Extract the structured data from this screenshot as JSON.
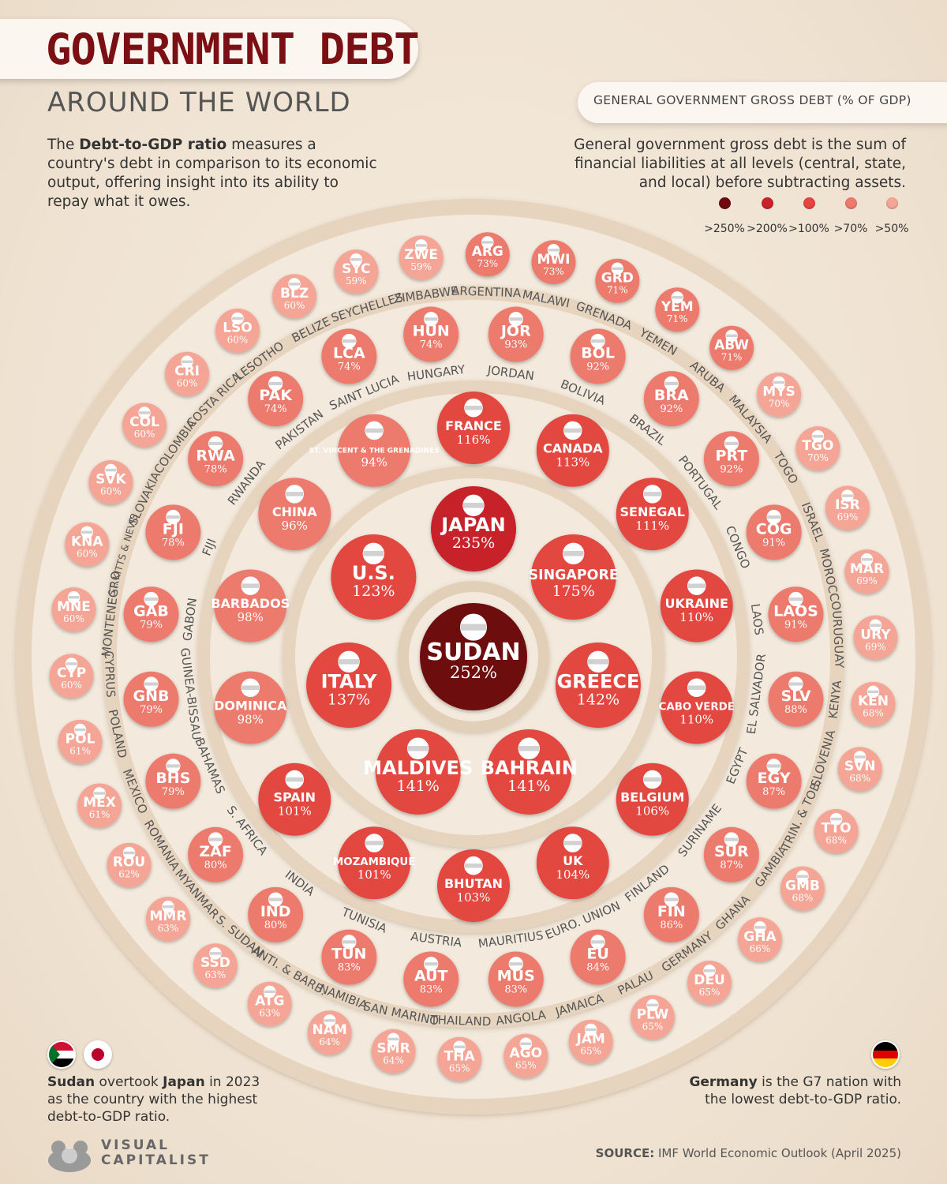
{
  "header": {
    "title": "GOVERNMENT DEBT",
    "subtitle": "AROUND THE WORLD",
    "intro_pre": "The ",
    "intro_bold": "Debt-to-GDP ratio",
    "intro_post": " measures a country's debt in comparison to its economic output, offering insight into its ability to repay what it owes."
  },
  "legend": {
    "title": "GENERAL GOVERNMENT GROSS DEBT (% OF GDP)",
    "description": "General government gross debt is the sum of financial liabilities at all levels (central, state, and local) before subtracting assets.",
    "items": [
      {
        "label": ">250%",
        "color": "#6e0a0e"
      },
      {
        "label": ">200%",
        "color": "#c7232a"
      },
      {
        "label": ">100%",
        "color": "#e2463f"
      },
      {
        "label": ">70%",
        "color": "#ec7a6d"
      },
      {
        "label": ">50%",
        "color": "#f4a595"
      }
    ]
  },
  "notes": {
    "left_bold1": "Sudan",
    "left_mid": " overtook ",
    "left_bold2": "Japan",
    "left_post": " in 2023 as the country with the highest debt-to-GDP ratio.",
    "right_bold": "Germany",
    "right_post": " is the G7 nation with the lowest debt-to-GDP ratio."
  },
  "source": {
    "label": "SOURCE:",
    "text": " IMF World Economic Outlook (April 2025)"
  },
  "logo": {
    "line1": "VISUAL",
    "line2": "CAPITALIST"
  },
  "chart_data": {
    "type": "bubble",
    "title": "GOVERNMENT DEBT",
    "subtitle": "AROUND THE WORLD",
    "metric": "GENERAL GOVERNMENT GROSS DEBT (% OF GDP)",
    "countries": [
      {
        "label": "SUDAN",
        "value": 252,
        "ring": 0
      },
      {
        "label": "JAPAN",
        "value": 235,
        "ring": 1
      },
      {
        "label": "SINGAPORE",
        "value": 175,
        "ring": 1
      },
      {
        "label": "GREECE",
        "value": 142,
        "ring": 1
      },
      {
        "label": "BAHRAIN",
        "value": 141,
        "ring": 1
      },
      {
        "label": "MALDIVES",
        "value": 141,
        "ring": 1
      },
      {
        "label": "ITALY",
        "value": 137,
        "ring": 1
      },
      {
        "label": "U.S.",
        "value": 123,
        "ring": 1
      },
      {
        "label": "FRANCE",
        "value": 116,
        "ring": 2
      },
      {
        "label": "CANADA",
        "value": 113,
        "ring": 2
      },
      {
        "label": "SENEGAL",
        "value": 111,
        "ring": 2
      },
      {
        "label": "UKRAINE",
        "value": 110,
        "ring": 2
      },
      {
        "label": "CABO VERDE",
        "value": 110,
        "ring": 2
      },
      {
        "label": "BELGIUM",
        "value": 106,
        "ring": 2
      },
      {
        "label": "UK",
        "value": 104,
        "ring": 2
      },
      {
        "label": "BHUTAN",
        "value": 103,
        "ring": 2
      },
      {
        "label": "MOZAMBIQUE",
        "value": 101,
        "ring": 2
      },
      {
        "label": "SPAIN",
        "value": 101,
        "ring": 2
      },
      {
        "label": "DOMINICA",
        "value": 98,
        "ring": 2
      },
      {
        "label": "BARBADOS",
        "value": 98,
        "ring": 2
      },
      {
        "label": "CHINA",
        "value": 96,
        "ring": 2
      },
      {
        "label": "ST. VINCENT & THE GRENADINES",
        "value": 94,
        "ring": 2
      },
      {
        "label": "JOR",
        "name": "JORDAN",
        "value": 93,
        "ring": 3
      },
      {
        "label": "BOL",
        "name": "BOLIVIA",
        "value": 92,
        "ring": 3
      },
      {
        "label": "BRA",
        "name": "BRAZIL",
        "value": 92,
        "ring": 3
      },
      {
        "label": "PRT",
        "name": "PORTUGAL",
        "value": 92,
        "ring": 3
      },
      {
        "label": "COG",
        "name": "CONGO",
        "value": 91,
        "ring": 3
      },
      {
        "label": "LAOS",
        "name": "LAOS",
        "value": 91,
        "ring": 3
      },
      {
        "label": "SLV",
        "name": "EL SALVADOR",
        "value": 88,
        "ring": 3
      },
      {
        "label": "EGY",
        "name": "EGYPT",
        "value": 87,
        "ring": 3
      },
      {
        "label": "SUR",
        "name": "SURINAME",
        "value": 87,
        "ring": 3
      },
      {
        "label": "FIN",
        "name": "FINLAND",
        "value": 86,
        "ring": 3
      },
      {
        "label": "EU",
        "name": "EURO. UNION",
        "value": 84,
        "ring": 3
      },
      {
        "label": "MUS",
        "name": "MAURITIUS",
        "value": 83,
        "ring": 3
      },
      {
        "label": "AUT",
        "name": "AUSTRIA",
        "value": 83,
        "ring": 3
      },
      {
        "label": "TUN",
        "name": "TUNISIA",
        "value": 83,
        "ring": 3
      },
      {
        "label": "IND",
        "name": "INDIA",
        "value": 80,
        "ring": 3
      },
      {
        "label": "ZAF",
        "name": "S. AFRICA",
        "value": 80,
        "ring": 3
      },
      {
        "label": "BHS",
        "name": "BAHAMAS",
        "value": 79,
        "ring": 3
      },
      {
        "label": "GNB",
        "name": "GUINEA-BISSAU",
        "value": 79,
        "ring": 3
      },
      {
        "label": "GAB",
        "name": "GABON",
        "value": 79,
        "ring": 3
      },
      {
        "label": "FJI",
        "name": "FIJI",
        "value": 78,
        "ring": 3
      },
      {
        "label": "RWA",
        "name": "RWANDA",
        "value": 78,
        "ring": 3
      },
      {
        "label": "PAK",
        "name": "PAKISTAN",
        "value": 74,
        "ring": 3
      },
      {
        "label": "LCA",
        "name": "SAINT LUCIA",
        "value": 74,
        "ring": 3
      },
      {
        "label": "HUN",
        "name": "HUNGARY",
        "value": 74,
        "ring": 3
      },
      {
        "label": "ARG",
        "name": "ARGENTINA",
        "value": 73,
        "ring": 4
      },
      {
        "label": "MWI",
        "name": "MALAWI",
        "value": 73,
        "ring": 4
      },
      {
        "label": "GRD",
        "name": "GRENADA",
        "value": 71,
        "ring": 4
      },
      {
        "label": "YEM",
        "name": "YEMEN",
        "value": 71,
        "ring": 4
      },
      {
        "label": "ABW",
        "name": "ARUBA",
        "value": 71,
        "ring": 4
      },
      {
        "label": "MYS",
        "name": "MALAYSIA",
        "value": 70,
        "ring": 4
      },
      {
        "label": "TGO",
        "name": "TOGO",
        "value": 70,
        "ring": 4
      },
      {
        "label": "ISR",
        "name": "ISRAEL",
        "value": 69,
        "ring": 4
      },
      {
        "label": "MAR",
        "name": "MOROCCO",
        "value": 69,
        "ring": 4
      },
      {
        "label": "URY",
        "name": "URUGUAY",
        "value": 69,
        "ring": 4
      },
      {
        "label": "KEN",
        "name": "KENYA",
        "value": 68,
        "ring": 4
      },
      {
        "label": "SVN",
        "name": "SLOVENIA",
        "value": 68,
        "ring": 4
      },
      {
        "label": "TTO",
        "name": "TRIN. & TOB.",
        "value": 68,
        "ring": 4
      },
      {
        "label": "GMB",
        "name": "GAMBIA",
        "value": 68,
        "ring": 4
      },
      {
        "label": "GHA",
        "name": "GHANA",
        "value": 66,
        "ring": 4
      },
      {
        "label": "DEU",
        "name": "GERMANY",
        "value": 65,
        "ring": 4
      },
      {
        "label": "PLW",
        "name": "PALAU",
        "value": 65,
        "ring": 4
      },
      {
        "label": "JAM",
        "name": "JAMAICA",
        "value": 65,
        "ring": 4
      },
      {
        "label": "AGO",
        "name": "ANGOLA",
        "value": 65,
        "ring": 4
      },
      {
        "label": "THA",
        "name": "THAILAND",
        "value": 65,
        "ring": 4
      },
      {
        "label": "SMR",
        "name": "SAN MARINO",
        "value": 64,
        "ring": 4
      },
      {
        "label": "NAM",
        "name": "NAMIBIA",
        "value": 64,
        "ring": 4
      },
      {
        "label": "ATG",
        "name": "ANTI. & BARB.",
        "value": 63,
        "ring": 4
      },
      {
        "label": "SSD",
        "name": "S. SUDAN",
        "value": 63,
        "ring": 4
      },
      {
        "label": "MMR",
        "name": "MYANMAR",
        "value": 63,
        "ring": 4
      },
      {
        "label": "ROU",
        "name": "ROMANIA",
        "value": 62,
        "ring": 4
      },
      {
        "label": "MEX",
        "name": "MEXICO",
        "value": 61,
        "ring": 4
      },
      {
        "label": "POL",
        "name": "POLAND",
        "value": 61,
        "ring": 4
      },
      {
        "label": "CYP",
        "name": "CYPRUS",
        "value": 60,
        "ring": 4
      },
      {
        "label": "MNE",
        "name": "MONTENEGRO",
        "value": 60,
        "ring": 4
      },
      {
        "label": "KNA",
        "name": "ST. KITTS & NEVIS",
        "value": 60,
        "ring": 4
      },
      {
        "label": "SVK",
        "name": "SLOVAKIA",
        "value": 60,
        "ring": 4
      },
      {
        "label": "COL",
        "name": "COLOMBIA",
        "value": 60,
        "ring": 4
      },
      {
        "label": "CRI",
        "name": "COSTA RICA",
        "value": 60,
        "ring": 4
      },
      {
        "label": "LSO",
        "name": "LESOTHO",
        "value": 60,
        "ring": 4
      },
      {
        "label": "BLZ",
        "name": "BELIZE",
        "value": 60,
        "ring": 4
      },
      {
        "label": "SYC",
        "name": "SEYCHELLES",
        "value": 59,
        "ring": 4
      },
      {
        "label": "ZWE",
        "name": "ZIMBABWE",
        "value": 59,
        "ring": 4
      }
    ]
  }
}
